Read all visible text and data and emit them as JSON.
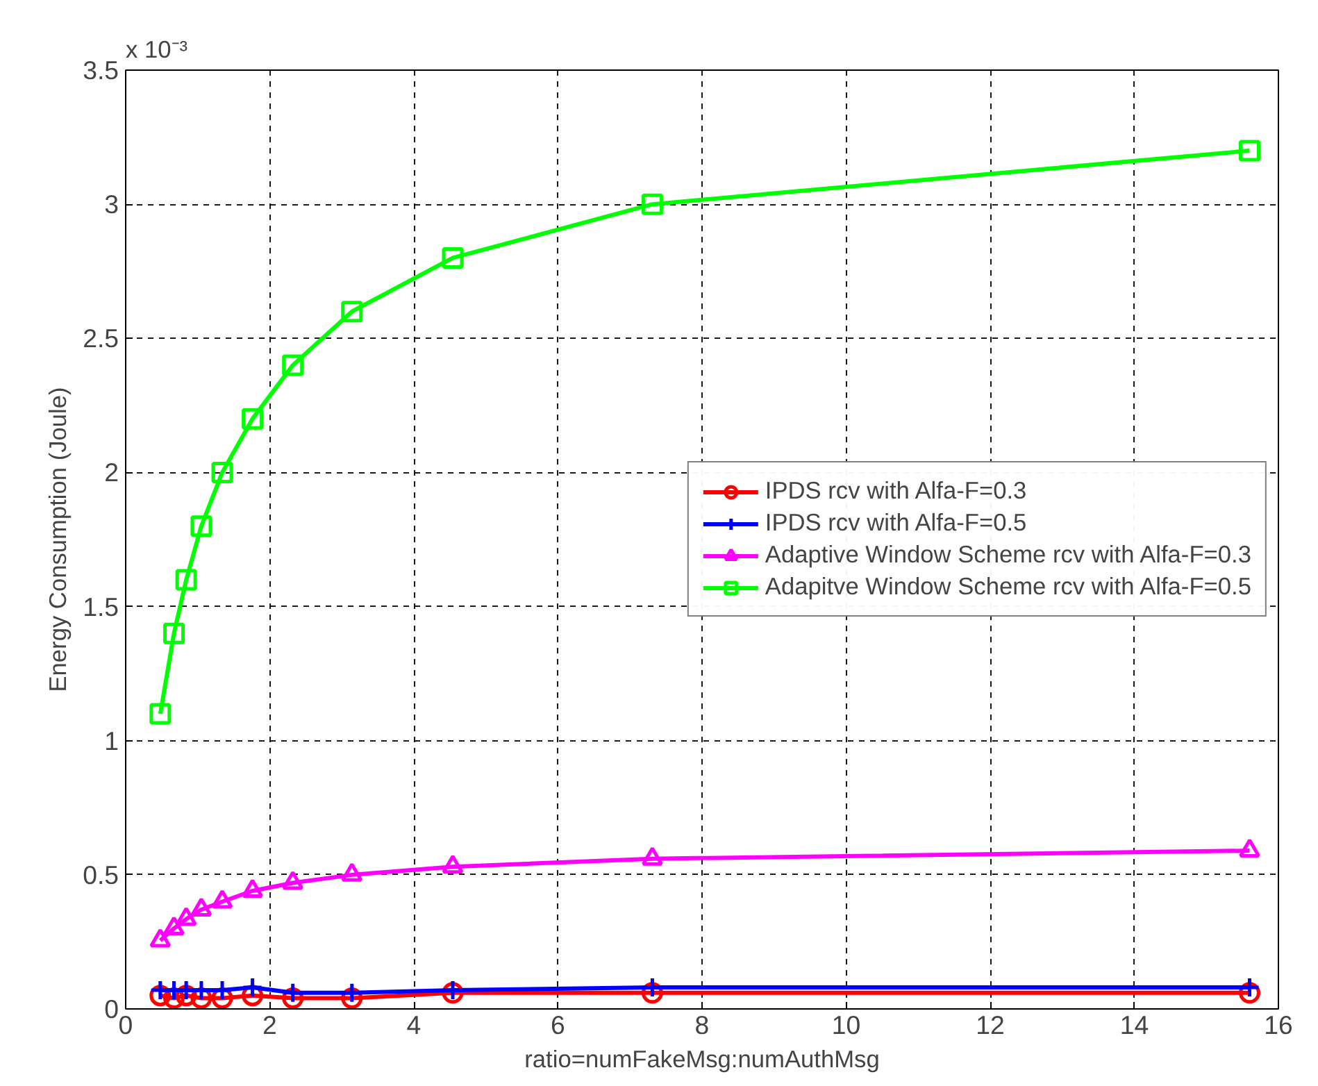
{
  "chart_data": {
    "type": "line",
    "xlabel": "ratio=numFakeMsg:numAuthMsg",
    "ylabel": "Energy Consumption (Joule)",
    "annotations": [
      "x 10⁻³"
    ],
    "x": [
      0.48,
      0.67,
      0.84,
      1.05,
      1.34,
      1.76,
      2.32,
      3.14,
      4.54,
      7.31,
      15.6
    ],
    "xlim": [
      0,
      16
    ],
    "xticks": [
      0,
      2,
      4,
      6,
      8,
      10,
      12,
      14,
      16
    ],
    "ylim": [
      0,
      3.5
    ],
    "yticks": [
      0,
      0.5,
      1,
      1.5,
      2,
      2.5,
      3,
      3.5
    ],
    "grid": true,
    "legend": "right",
    "line_style": "solid",
    "series": [
      {
        "name": "IPDS rcv with Alfa-F=0.3",
        "color": "#ff0000",
        "marker": "circle",
        "values": [
          0.05,
          0.04,
          0.05,
          0.04,
          0.04,
          0.05,
          0.04,
          0.04,
          0.06,
          0.06,
          0.06
        ]
      },
      {
        "name": "IPDS rcv with Alfa-F=0.5",
        "color": "#0000ff",
        "marker": "cross",
        "values": [
          0.07,
          0.07,
          0.07,
          0.07,
          0.07,
          0.08,
          0.06,
          0.06,
          0.07,
          0.08,
          0.08
        ]
      },
      {
        "name": "Adaptive Window Scheme rcv with Alfa-F=0.3",
        "color": "#ff00ff",
        "marker": "triangle",
        "values": [
          0.255,
          0.3,
          0.335,
          0.37,
          0.4,
          0.44,
          0.47,
          0.5,
          0.53,
          0.56,
          0.59
        ]
      },
      {
        "name": "Adapitve Window Scheme rcv with Alfa-F=0.5",
        "color": "#00ff00",
        "marker": "square",
        "values": [
          1.1,
          1.4,
          1.6,
          1.8,
          2.0,
          2.2,
          2.4,
          2.6,
          2.8,
          3.0,
          3.2
        ]
      }
    ]
  }
}
